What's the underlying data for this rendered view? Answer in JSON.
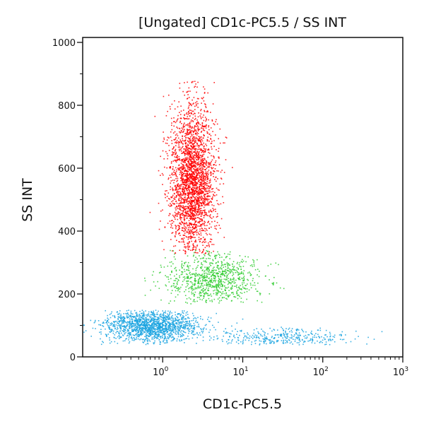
{
  "chart_data": {
    "type": "scatter",
    "title": "[Ungated] CD1c-PC5.5 / SS INT",
    "xlabel": "CD1c-PC5.5",
    "ylabel": "SS INT",
    "xscale": "log",
    "xlim": [
      0.1,
      1000
    ],
    "ylim": [
      0,
      1000
    ],
    "x_ticks": [
      {
        "value": 1,
        "base": "10",
        "exp": "0"
      },
      {
        "value": 10,
        "base": "10",
        "exp": "1"
      },
      {
        "value": 100,
        "base": "10",
        "exp": "2"
      },
      {
        "value": 1000,
        "base": "10",
        "exp": "3"
      }
    ],
    "y_ticks": [
      {
        "value": 0,
        "label": "0"
      },
      {
        "value": 200,
        "label": "200"
      },
      {
        "value": 400,
        "label": "400"
      },
      {
        "value": 600,
        "label": "600"
      },
      {
        "value": 800,
        "label": "800"
      },
      {
        "value": 1000,
        "label": "1000"
      }
    ],
    "grid": false,
    "populations": [
      {
        "color": "#ff0000",
        "x_center": 2.3,
        "x_log_spread": 0.14,
        "y_center": 560,
        "y_spread": 120,
        "y_range": [
          330,
          880
        ],
        "count": 2600
      },
      {
        "color": "#33cc33",
        "x_center": 4.0,
        "x_log_spread": 0.3,
        "y_center": 250,
        "y_spread": 40,
        "y_range": [
          170,
          340
        ],
        "count": 900
      },
      {
        "color": "#1aa3e0",
        "x_center": 0.7,
        "x_log_spread": 0.3,
        "y_center": 100,
        "y_spread": 25,
        "y_range": [
          40,
          150
        ],
        "count": 1500
      },
      {
        "color": "#1aa3e0",
        "x_center": 30,
        "x_log_spread": 0.45,
        "y_center": 65,
        "y_spread": 15,
        "y_range": [
          40,
          100
        ],
        "count": 350
      }
    ]
  }
}
